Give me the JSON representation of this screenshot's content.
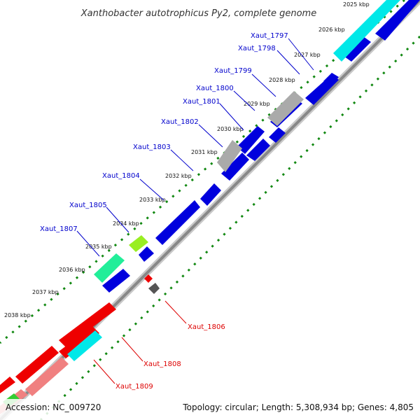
{
  "title": "Xanthobacter autotrophicus Py2, complete genome",
  "footer": {
    "accession": "Accession: NC_009720",
    "summary": "Topology: circular; Length: 5,308,934 bp; Genes: 4,805"
  },
  "colors": {
    "forward_gene": "#0000dd",
    "reverse_gene": "#ee0000",
    "cyan_gene": "#00e8e8",
    "grey_gene": "#aaaaaa",
    "green_gene": "#99ee22",
    "teal_gene": "#22ee99",
    "pink_gene": "#f08080",
    "backbone": "#888888",
    "tick": "#118811",
    "forward_label": "#0000cc",
    "reverse_label": "#dd0000"
  },
  "ticks": [
    "2025 kbp",
    "2026 kbp",
    "2027 kbp",
    "2028 kbp",
    "2029 kbp",
    "2030 kbp",
    "2031 kbp",
    "2032 kbp",
    "2033 kbp",
    "2034 kbp",
    "2035 kbp",
    "2036 kbp",
    "2037 kbp",
    "2038 kbp"
  ],
  "forward_genes": [
    "Xaut_1797",
    "Xaut_1798",
    "Xaut_1799",
    "Xaut_1800",
    "Xaut_1801",
    "Xaut_1802",
    "Xaut_1803",
    "Xaut_1804",
    "Xaut_1805",
    "Xaut_1807"
  ],
  "reverse_genes": [
    "Xaut_1806",
    "Xaut_1808",
    "Xaut_1809"
  ]
}
